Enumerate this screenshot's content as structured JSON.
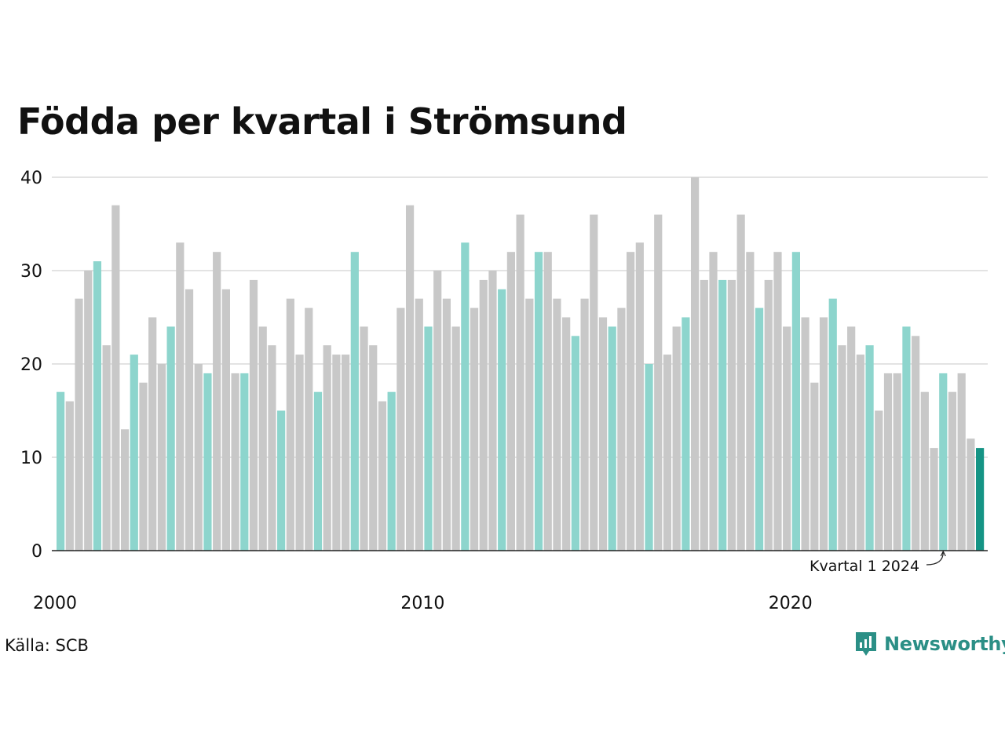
{
  "title": "Födda per kvartal i Strömsund",
  "source": "Källa: SCB",
  "brand": "Newsworthy",
  "annotation": "Kvartal 1 2024",
  "colors": {
    "q1": "#8dd5cd",
    "other": "#c8c8c8",
    "highlight": "#159485",
    "grid": "#e3e3e3",
    "axis": "#222222",
    "brand": "#2b8f86"
  },
  "chart_data": {
    "type": "bar",
    "title": "Födda per kvartal i Strömsund",
    "xlabel": "",
    "ylabel": "",
    "ylim": [
      0,
      40
    ],
    "yticks": [
      "0",
      "10",
      "20",
      "30",
      "40"
    ],
    "xticks": [
      "2000",
      "2010",
      "2020"
    ],
    "grid": true,
    "start": "2000 Q1",
    "values": [
      17,
      16,
      27,
      30,
      31,
      22,
      37,
      13,
      21,
      18,
      25,
      20,
      24,
      33,
      28,
      20,
      19,
      32,
      28,
      19,
      19,
      29,
      24,
      22,
      15,
      27,
      21,
      26,
      17,
      22,
      21,
      21,
      32,
      24,
      22,
      16,
      17,
      26,
      37,
      27,
      24,
      30,
      27,
      24,
      33,
      26,
      29,
      30,
      28,
      32,
      36,
      27,
      32,
      32,
      27,
      25,
      23,
      27,
      36,
      25,
      24,
      26,
      32,
      33,
      20,
      36,
      21,
      24,
      25,
      40,
      29,
      32,
      29,
      29,
      36,
      32,
      26,
      29,
      32,
      24,
      32,
      25,
      18,
      25,
      27,
      22,
      24,
      21,
      22,
      15,
      19,
      19,
      24,
      23,
      17,
      11,
      19,
      17,
      19,
      12,
      11
    ]
  }
}
